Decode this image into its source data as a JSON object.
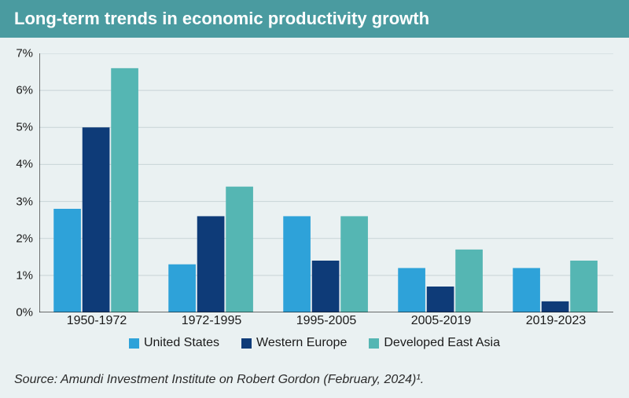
{
  "title": "Long-term trends in economic productivity growth",
  "chart": {
    "type": "bar",
    "background_color": "#eaf1f2",
    "title_bar_color": "#4a9ba0",
    "title_text_color": "#ffffff",
    "title_fontsize": 22,
    "axis_fontsize": 15,
    "legend_fontsize": 16,
    "axis_color": "#1a1a1a",
    "grid_color": "#c7d4d6",
    "ylim": [
      0,
      7
    ],
    "ytick_step": 1,
    "ytick_format": "percent",
    "categories": [
      "1950-1972",
      "1972-1995",
      "1995-2005",
      "2005-2019",
      "2019-2023"
    ],
    "series": [
      {
        "name": "United States",
        "color": "#2ea2d9",
        "values": [
          2.8,
          1.3,
          2.6,
          1.2,
          1.2
        ]
      },
      {
        "name": "Western Europe",
        "color": "#0e3b78",
        "values": [
          5.0,
          2.6,
          1.4,
          0.7,
          0.3
        ]
      },
      {
        "name": "Developed East Asia",
        "color": "#55b6b3",
        "values": [
          6.6,
          3.4,
          2.6,
          1.7,
          1.4
        ]
      }
    ],
    "bar_gap": 0.35,
    "group_gap": 0.25
  },
  "source": "Source: Amundi Investment Institute on Robert Gordon (February, 2024)¹."
}
